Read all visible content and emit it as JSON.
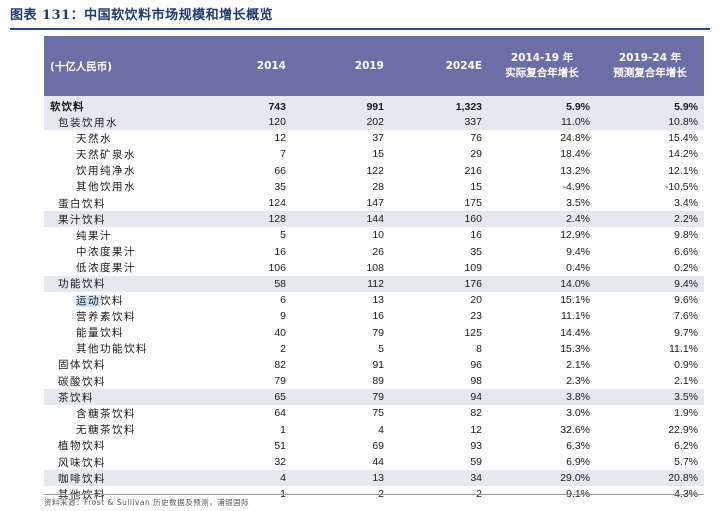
{
  "title": "图表 131：中国软饮料市场规模和增长概览",
  "header": {
    "unit": "(十亿人民币)",
    "col_2014": "2014",
    "col_2019": "2019",
    "col_2024e": "2024E",
    "cagr1_line1": "2014-19 年",
    "cagr1_line2": "实际复合年增长",
    "cagr2_line1": "2019-24 年",
    "cagr2_line2": "预测复合年增长"
  },
  "rows": [
    {
      "label": "软饮料",
      "v2014": "743",
      "v2019": "991",
      "v2024e": "1,323",
      "cagr1": "5.9%",
      "cagr2": "5.9%"
    },
    {
      "label": "包装饮用水",
      "v2014": "120",
      "v2019": "202",
      "v2024e": "337",
      "cagr1": "11.0%",
      "cagr2": "10.8%"
    },
    {
      "label": "天然水",
      "v2014": "12",
      "v2019": "37",
      "v2024e": "76",
      "cagr1": "24.8%",
      "cagr2": "15.4%"
    },
    {
      "label": "天然矿泉水",
      "v2014": "7",
      "v2019": "15",
      "v2024e": "29",
      "cagr1": "18.4%",
      "cagr2": "14.2%"
    },
    {
      "label": "饮用纯净水",
      "v2014": "66",
      "v2019": "122",
      "v2024e": "216",
      "cagr1": "13.2%",
      "cagr2": "12.1%"
    },
    {
      "label": "其他饮用水",
      "v2014": "35",
      "v2019": "28",
      "v2024e": "15",
      "cagr1": "-4.9%",
      "cagr2": "-10.5%"
    },
    {
      "label": "蛋白饮料",
      "v2014": "124",
      "v2019": "147",
      "v2024e": "175",
      "cagr1": "3.5%",
      "cagr2": "3.4%"
    },
    {
      "label": "果汁饮料",
      "v2014": "128",
      "v2019": "144",
      "v2024e": "160",
      "cagr1": "2.4%",
      "cagr2": "2.2%"
    },
    {
      "label": "纯果汁",
      "v2014": "5",
      "v2019": "10",
      "v2024e": "16",
      "cagr1": "12.9%",
      "cagr2": "9.8%"
    },
    {
      "label": "中浓度果汁",
      "v2014": "16",
      "v2019": "26",
      "v2024e": "35",
      "cagr1": "9.4%",
      "cagr2": "6.6%"
    },
    {
      "label": "低浓度果汁",
      "v2014": "106",
      "v2019": "108",
      "v2024e": "109",
      "cagr1": "0.4%",
      "cagr2": "0.2%"
    },
    {
      "label": "功能饮料",
      "v2014": "58",
      "v2019": "112",
      "v2024e": "176",
      "cagr1": "14.0%",
      "cagr2": "9.4%"
    },
    {
      "label": "运动饮料",
      "v2014": "6",
      "v2019": "13",
      "v2024e": "20",
      "cagr1": "15.1%",
      "cagr2": "9.6%"
    },
    {
      "label": "营养素饮料",
      "v2014": "9",
      "v2019": "16",
      "v2024e": "23",
      "cagr1": "11.1%",
      "cagr2": "7.6%"
    },
    {
      "label": "能量饮料",
      "v2014": "40",
      "v2019": "79",
      "v2024e": "125",
      "cagr1": "14.4%",
      "cagr2": "9.7%"
    },
    {
      "label": "其他功能饮料",
      "v2014": "2",
      "v2019": "5",
      "v2024e": "8",
      "cagr1": "15.3%",
      "cagr2": "11.1%"
    },
    {
      "label": "固体饮料",
      "v2014": "82",
      "v2019": "91",
      "v2024e": "96",
      "cagr1": "2.1%",
      "cagr2": "0.9%"
    },
    {
      "label": "碳酸饮料",
      "v2014": "79",
      "v2019": "89",
      "v2024e": "98",
      "cagr1": "2.3%",
      "cagr2": "2.1%"
    },
    {
      "label": "茶饮料",
      "v2014": "65",
      "v2019": "79",
      "v2024e": "94",
      "cagr1": "3.8%",
      "cagr2": "3.5%"
    },
    {
      "label": "含糖茶饮料",
      "v2014": "64",
      "v2019": "75",
      "v2024e": "82",
      "cagr1": "3.0%",
      "cagr2": "1.9%"
    },
    {
      "label": "无糖茶饮料",
      "v2014": "1",
      "v2019": "4",
      "v2024e": "12",
      "cagr1": "32.6%",
      "cagr2": "22.9%"
    },
    {
      "label": "植物饮料",
      "v2014": "51",
      "v2019": "69",
      "v2024e": "93",
      "cagr1": "6.3%",
      "cagr2": "6.2%"
    },
    {
      "label": "风味饮料",
      "v2014": "32",
      "v2019": "44",
      "v2024e": "59",
      "cagr1": "6.9%",
      "cagr2": "5.7%"
    },
    {
      "label": "咖啡饮料",
      "v2014": "4",
      "v2019": "13",
      "v2024e": "34",
      "cagr1": "29.0%",
      "cagr2": "20.8%"
    },
    {
      "label": "其他饮料",
      "v2014": "1",
      "v2019": "2",
      "v2024e": "2",
      "cagr1": "9.1%",
      "cagr2": "4.3%"
    }
  ],
  "source": "资料来源：Frost & Sullivan 历史数据及预测，浦银国际",
  "colors": {
    "header_bg": "#6b6fa5",
    "row_shade": "#e6e8f1",
    "title": "#1f3a6e"
  }
}
